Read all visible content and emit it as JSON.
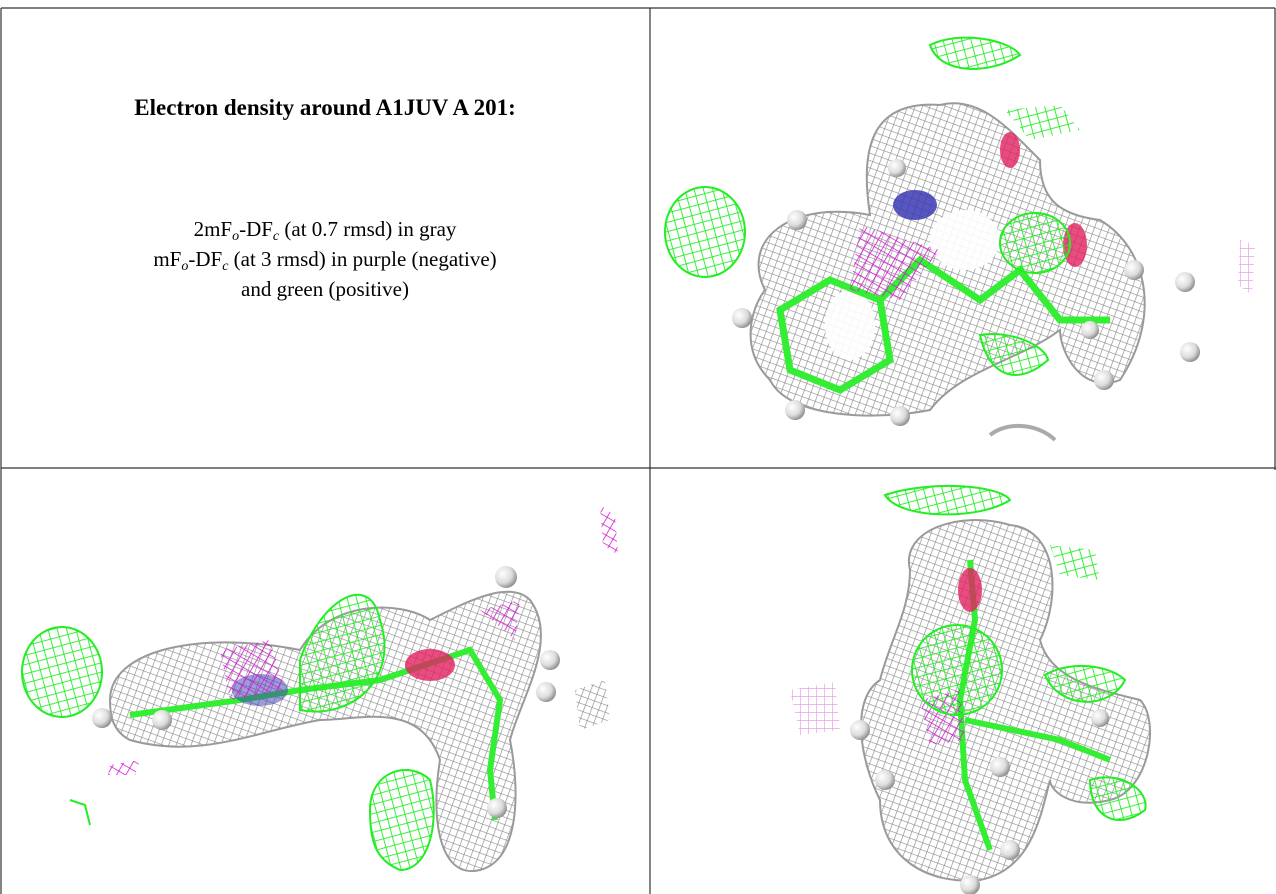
{
  "header": {
    "title": "Electron density around A1JUV A 201:"
  },
  "legend": [
    [
      "2mF",
      "o",
      "-DF",
      "c",
      " (at 0.7 rmsd) in gray"
    ],
    [
      "mF",
      "o",
      "-DF",
      "c",
      " (at 3 rmsd) in purple (negative)"
    ],
    [
      "and green (positive)"
    ]
  ]
}
